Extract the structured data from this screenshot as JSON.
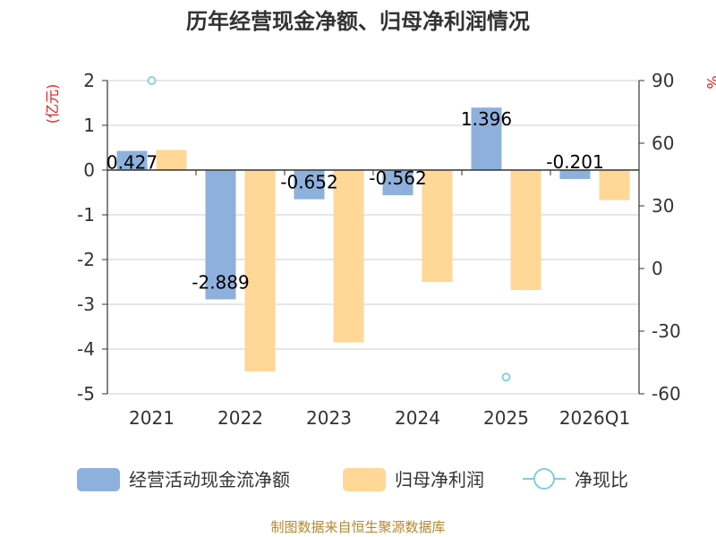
{
  "chart_data": {
    "type": "bar",
    "title": "历年经营现金净额、归母净利润情况",
    "categories": [
      "2021",
      "2022",
      "2023",
      "2024",
      "2025",
      "2026Q1"
    ],
    "left_axis": {
      "unit": "(亿元)",
      "ylim": [
        -5,
        2
      ],
      "ticks": [
        2,
        1,
        0,
        -1,
        -2,
        -3,
        -4,
        -5
      ]
    },
    "right_axis": {
      "unit": "%",
      "ylim": [
        -60,
        90
      ],
      "ticks": [
        90,
        60,
        30,
        0,
        -30,
        -60
      ]
    },
    "series": [
      {
        "name": "经营活动现金流净额",
        "kind": "bar",
        "axis": "left",
        "color": "#8eb0dc",
        "values": [
          0.427,
          -2.889,
          -0.652,
          -0.562,
          1.396,
          -0.201
        ],
        "labels": [
          "0.427",
          "-2.889",
          "-0.652",
          "-0.562",
          "1.396",
          "-0.201"
        ]
      },
      {
        "name": "归母净利润",
        "kind": "bar",
        "axis": "left",
        "color": "#ffd796",
        "values": [
          0.45,
          -4.5,
          -3.85,
          -2.5,
          -2.68,
          -0.67
        ]
      },
      {
        "name": "净现比",
        "kind": "scatter",
        "axis": "right",
        "color": "#7ecfdc",
        "values": [
          90,
          null,
          null,
          null,
          -52,
          null
        ]
      }
    ],
    "grid": true,
    "legend_position": "bottom"
  },
  "source_note": "制图数据来自恒生聚源数据库"
}
